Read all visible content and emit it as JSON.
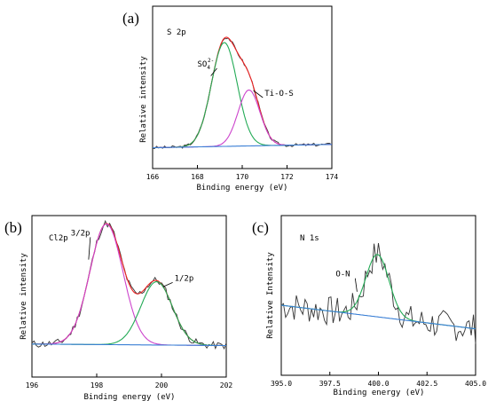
{
  "chart_data": [
    {
      "panel": "(a)",
      "type": "line",
      "element_label": "S 2p",
      "xlabel": "Binding energy (eV)",
      "ylabel": "Relative intensity",
      "xlim": [
        166,
        174
      ],
      "xticks": [
        166,
        168,
        170,
        172,
        174
      ],
      "annotations": [
        {
          "text": "SO",
          "sup": "2-",
          "sub": "4",
          "x": 168.0,
          "y": 0.62,
          "arrow_to": [
            168.6,
            0.55
          ]
        },
        {
          "text": "Ti-O-S",
          "x": 171.0,
          "y": 0.4,
          "arrow_to": [
            170.5,
            0.44
          ]
        }
      ],
      "series": [
        {
          "role": "raw",
          "color": "#333333",
          "noise": 0.012,
          "seed": 3
        },
        {
          "role": "envelope",
          "color": "#ee2222"
        },
        {
          "role": "peak",
          "color": "#22aa55",
          "center": 169.2,
          "height": 0.78,
          "fwhm": 1.35
        },
        {
          "role": "peak",
          "color": "#cc44cc",
          "center": 170.3,
          "height": 0.42,
          "fwhm": 1.15
        },
        {
          "role": "background",
          "color": "#3a7fd5",
          "from": 0.01,
          "to": 0.035
        }
      ]
    },
    {
      "panel": "(b)",
      "type": "line",
      "element_label": "Cl2p",
      "xlabel": "Binding energy (eV)",
      "ylabel": "Relative intensity",
      "xlim": [
        196,
        202
      ],
      "xticks": [
        196,
        198,
        200,
        202
      ],
      "annotations": [
        {
          "text": "3/2p",
          "x": 197.2,
          "y": 0.78,
          "arrow_to": [
            197.75,
            0.62
          ]
        },
        {
          "text": "1/2p",
          "x": 200.4,
          "y": 0.48,
          "arrow_to": [
            200.05,
            0.44
          ]
        }
      ],
      "series": [
        {
          "role": "raw",
          "color": "#333333",
          "noise": 0.025,
          "seed": 11
        },
        {
          "role": "envelope",
          "color": "#ee2222"
        },
        {
          "role": "peak",
          "color": "#cc44cc",
          "center": 198.3,
          "height": 0.8,
          "fwhm": 1.2
        },
        {
          "role": "peak",
          "color": "#22aa55",
          "center": 199.85,
          "height": 0.42,
          "fwhm": 1.15
        },
        {
          "role": "background",
          "color": "#3a7fd5",
          "from": 0.06,
          "to": 0.05
        }
      ]
    },
    {
      "panel": "(c)",
      "type": "line",
      "element_label": "N 1s",
      "xlabel": "Binding energy (eV)",
      "ylabel": "Relative Intensity",
      "xlim": [
        395.0,
        405.0
      ],
      "xticks": [
        395.0,
        397.5,
        400.0,
        402.5,
        405.0
      ],
      "annotations": [
        {
          "text": "O-N",
          "x": 397.8,
          "y": 0.57,
          "arrow_to": [
            398.9,
            0.48
          ]
        }
      ],
      "series": [
        {
          "role": "raw",
          "color": "#333333",
          "noise": 0.09,
          "seed": 7
        },
        {
          "role": "peak",
          "color": "#22aa55",
          "center": 399.95,
          "height": 0.37,
          "fwhm": 1.4
        },
        {
          "role": "background",
          "color": "#3a7fd5",
          "from": 0.4,
          "to": 0.26
        }
      ]
    }
  ]
}
